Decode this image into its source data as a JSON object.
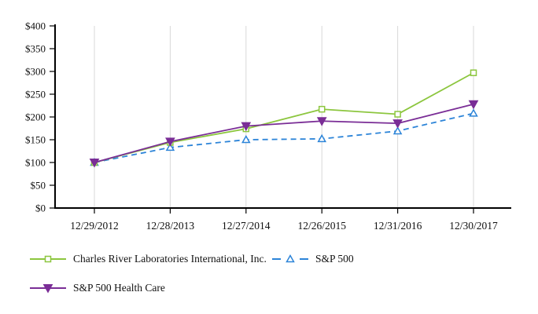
{
  "chart_data": {
    "type": "line",
    "title": "",
    "categories": [
      "12/29/2012",
      "12/28/2013",
      "12/27/2014",
      "12/26/2015",
      "12/31/2016",
      "12/30/2017"
    ],
    "y_tick_labels": [
      "$0",
      "$50",
      "$100",
      "$150",
      "$200",
      "$250",
      "$300",
      "$350",
      "$400"
    ],
    "ylim": [
      0,
      400
    ],
    "grid": "vertical-only",
    "gridline_color": "#d8d8d8",
    "axis_color": "#000000",
    "legend_position": "bottom-left",
    "z_order": [
      1,
      0,
      2
    ],
    "series": [
      {
        "name": "Charles River Laboratories International, Inc.",
        "values": [
          100,
          144,
          174,
          217,
          206,
          297
        ],
        "color": "#8cc63e",
        "line_style": "solid",
        "marker": "square-open"
      },
      {
        "name": "S&P 500",
        "values": [
          100,
          133,
          150,
          152,
          169,
          208
        ],
        "color": "#2c84d8",
        "line_style": "dashed",
        "marker": "triangle-up-open"
      },
      {
        "name": "S&P 500 Health Care",
        "values": [
          100,
          146,
          180,
          191,
          186,
          228
        ],
        "color": "#7a2d96",
        "line_style": "solid",
        "marker": "triangle-down-filled"
      }
    ]
  }
}
